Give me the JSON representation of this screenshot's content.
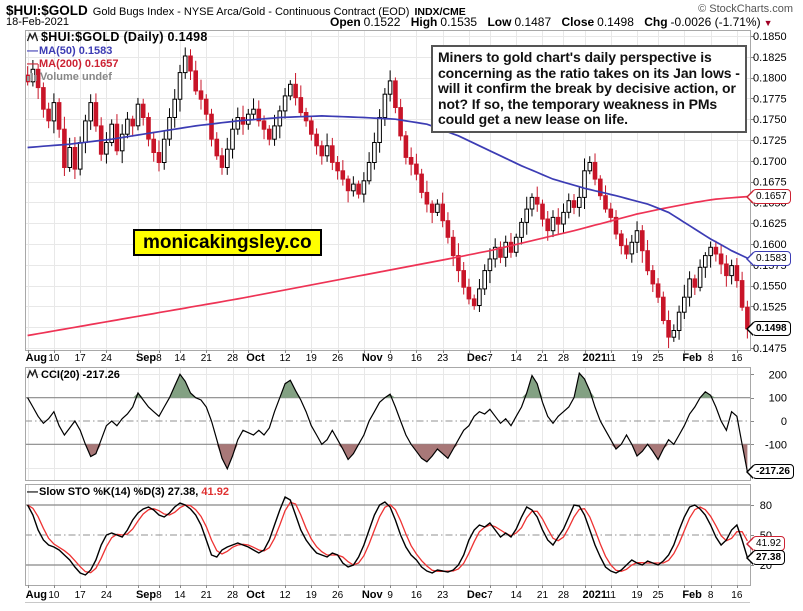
{
  "header": {
    "symbol": "$HUI:$GOLD",
    "description": "Gold Bugs Index - NYSE Arca/Gold - Continuous Contract (EOD)",
    "exchange": "INDX/CME",
    "copyright": "© StockCharts.com",
    "date": "18-Feb-2021",
    "quote": {
      "open_label": "Open",
      "open": "0.1522",
      "high_label": "High",
      "high": "0.1535",
      "low_label": "Low",
      "low": "0.1487",
      "close_label": "Close",
      "close": "0.1498",
      "chg_label": "Chg",
      "chg": "-0.0026 (-1.71%)",
      "down_arrow": "▼"
    }
  },
  "legend": {
    "dash": "—",
    "title": "$HUI:$GOLD (Daily) 0.1498",
    "ma50": "MA(50) 0.1583",
    "ma200": "MA(200) 0.1657",
    "volume": "Volume undef",
    "cci": "CCI(20) -217.26",
    "sto_black": "Slow STO %K(14) %D(3) 27.38,",
    "sto_red": "41.92"
  },
  "annotation": "Miners to gold chart's daily perspective is concerning as the ratio takes on its Jan lows - will it confirm the break by decisive action, or not? If so, the temporary weakness in PMs could get a new lease on life.",
  "watermark": "monicakingsley.co",
  "callouts": {
    "ma200": "0.1657",
    "ma50": "0.1583",
    "last": "0.1498",
    "cci": "-217.26",
    "sto_d": "41.92",
    "sto_k": "27.38"
  },
  "colors": {
    "candle_red": "#c81528",
    "candle_up_fill": "#ffffff",
    "candle_up_stroke": "#000000",
    "ma50": "#3c3cb4",
    "ma200": "#ee3355",
    "cci_line": "#000000",
    "cci_green_fill": "#83a183",
    "cci_red_fill": "#a87878",
    "sto_k": "#000000",
    "sto_d": "#ee3333",
    "grid": "#e8e8e8",
    "panel_border": "#a8a8a8",
    "threshold": "#888888",
    "watermark_bg": "#ffff00",
    "annotation_border": "#555555"
  },
  "chart_data": [
    {
      "type": "candlestick",
      "title": "$HUI:$GOLD (Daily)",
      "ylim": [
        0.1475,
        0.1851
      ],
      "yticks": [
        "0.1850",
        "0.1825",
        "0.1800",
        "0.1775",
        "0.1750",
        "0.1725",
        "0.1700",
        "0.1675",
        "0.1650",
        "0.1625",
        "0.1600",
        "0.1575",
        "0.1550",
        "0.1525",
        "0.1500",
        "0.1475"
      ],
      "xticklabels": [
        {
          "i": 0,
          "t": "Aug",
          "b": 1
        },
        {
          "i": 5,
          "t": "10"
        },
        {
          "i": 10,
          "t": "17"
        },
        {
          "i": 15,
          "t": "24"
        },
        {
          "i": 21,
          "t": "Sep",
          "b": 1
        },
        {
          "i": 25,
          "t": "8"
        },
        {
          "i": 29,
          "t": "14"
        },
        {
          "i": 34,
          "t": "21"
        },
        {
          "i": 39,
          "t": "28"
        },
        {
          "i": 42,
          "t": "Oct",
          "b": 1
        },
        {
          "i": 49,
          "t": "12"
        },
        {
          "i": 54,
          "t": "19"
        },
        {
          "i": 59,
          "t": "26"
        },
        {
          "i": 64,
          "t": "Nov",
          "b": 1
        },
        {
          "i": 69,
          "t": "9"
        },
        {
          "i": 74,
          "t": "16"
        },
        {
          "i": 79,
          "t": "23"
        },
        {
          "i": 84,
          "t": "Dec",
          "b": 1
        },
        {
          "i": 88,
          "t": "7"
        },
        {
          "i": 93,
          "t": "14"
        },
        {
          "i": 98,
          "t": "21"
        },
        {
          "i": 102,
          "t": "28"
        },
        {
          "i": 106,
          "t": "2021",
          "b": 1
        },
        {
          "i": 111,
          "t": "11"
        },
        {
          "i": 116,
          "t": "19"
        },
        {
          "i": 120,
          "t": "25"
        },
        {
          "i": 125,
          "t": "Feb",
          "b": 1
        },
        {
          "i": 130,
          "t": "8"
        },
        {
          "i": 135,
          "t": "16"
        }
      ],
      "close": [
        0.1795,
        0.181,
        0.1788,
        0.1762,
        0.1748,
        0.177,
        0.1738,
        0.1692,
        0.1716,
        0.169,
        0.1722,
        0.1748,
        0.177,
        0.1742,
        0.1708,
        0.1722,
        0.1744,
        0.1712,
        0.1732,
        0.175,
        0.1742,
        0.1768,
        0.1752,
        0.1726,
        0.171,
        0.1698,
        0.1726,
        0.1752,
        0.1774,
        0.1806,
        0.1826,
        0.1808,
        0.1784,
        0.1774,
        0.1756,
        0.1726,
        0.1706,
        0.1692,
        0.1714,
        0.1738,
        0.1752,
        0.1744,
        0.1756,
        0.1762,
        0.1748,
        0.1738,
        0.1726,
        0.1742,
        0.176,
        0.1778,
        0.1792,
        0.1776,
        0.1758,
        0.1748,
        0.1732,
        0.1718,
        0.1706,
        0.1718,
        0.1698,
        0.1688,
        0.1678,
        0.1664,
        0.1672,
        0.166,
        0.1676,
        0.1698,
        0.1722,
        0.1752,
        0.178,
        0.1796,
        0.1764,
        0.173,
        0.1704,
        0.1696,
        0.1684,
        0.1662,
        0.1648,
        0.1638,
        0.1648,
        0.1628,
        0.1608,
        0.1586,
        0.1568,
        0.1548,
        0.1534,
        0.1526,
        0.1546,
        0.1568,
        0.1582,
        0.1596,
        0.1584,
        0.1602,
        0.159,
        0.1608,
        0.1626,
        0.1642,
        0.1656,
        0.1648,
        0.163,
        0.1616,
        0.1632,
        0.1624,
        0.1638,
        0.1652,
        0.1644,
        0.1656,
        0.1688,
        0.1698,
        0.1678,
        0.1658,
        0.1642,
        0.1632,
        0.1612,
        0.1598,
        0.1588,
        0.1602,
        0.1616,
        0.1592,
        0.1568,
        0.1552,
        0.1536,
        0.1508,
        0.1488,
        0.1496,
        0.1518,
        0.1536,
        0.1558,
        0.1548,
        0.1572,
        0.1586,
        0.1596,
        0.1588,
        0.1576,
        0.1562,
        0.1574,
        0.1556,
        0.1524,
        0.1498
      ],
      "last_close": 0.1498,
      "ma50": {
        "name": "MA(50)",
        "value": 0.1583,
        "keypoints": [
          [
            0,
            0.1716
          ],
          [
            8,
            0.172
          ],
          [
            16,
            0.1726
          ],
          [
            24,
            0.1734
          ],
          [
            32,
            0.1742
          ],
          [
            40,
            0.1748
          ],
          [
            48,
            0.1752
          ],
          [
            56,
            0.1754
          ],
          [
            64,
            0.1752
          ],
          [
            70,
            0.175
          ],
          [
            76,
            0.1744
          ],
          [
            82,
            0.173
          ],
          [
            88,
            0.1712
          ],
          [
            94,
            0.1694
          ],
          [
            100,
            0.1678
          ],
          [
            106,
            0.1667
          ],
          [
            112,
            0.1658
          ],
          [
            118,
            0.1648
          ],
          [
            122,
            0.1638
          ],
          [
            126,
            0.1622
          ],
          [
            130,
            0.1606
          ],
          [
            134,
            0.1592
          ],
          [
            137,
            0.1583
          ]
        ]
      },
      "ma200": {
        "name": "MA(200)",
        "value": 0.1657,
        "keypoints": [
          [
            0,
            0.149
          ],
          [
            10,
            0.1501
          ],
          [
            20,
            0.1512
          ],
          [
            30,
            0.1523
          ],
          [
            40,
            0.1534
          ],
          [
            50,
            0.1546
          ],
          [
            60,
            0.1558
          ],
          [
            70,
            0.157
          ],
          [
            80,
            0.1582
          ],
          [
            88,
            0.1592
          ],
          [
            96,
            0.1604
          ],
          [
            104,
            0.1616
          ],
          [
            110,
            0.1626
          ],
          [
            116,
            0.1636
          ],
          [
            122,
            0.1644
          ],
          [
            127,
            0.165
          ],
          [
            131,
            0.1654
          ],
          [
            137,
            0.1657
          ]
        ]
      }
    },
    {
      "type": "line",
      "name": "CCI(20)",
      "ylim": [
        -256,
        228
      ],
      "yticks": [
        {
          "v": 200,
          "t": "200"
        },
        {
          "v": 100,
          "t": "100"
        },
        {
          "v": 0,
          "t": "0"
        },
        {
          "v": -100,
          "t": "-100"
        }
      ],
      "thresholds": {
        "upper": 100,
        "lower": -100,
        "mid": 0
      },
      "last": -217.26,
      "values": [
        100,
        60,
        20,
        -10,
        10,
        40,
        -20,
        -60,
        -30,
        0,
        -40,
        -100,
        -152,
        -140,
        -80,
        -20,
        0,
        -20,
        10,
        30,
        60,
        120,
        90,
        60,
        40,
        20,
        60,
        100,
        150,
        200,
        170,
        120,
        100,
        90,
        60,
        0,
        -80,
        -160,
        -205,
        -150,
        -80,
        -40,
        -50,
        -60,
        -40,
        -60,
        -30,
        40,
        100,
        160,
        175,
        130,
        90,
        40,
        -20,
        -60,
        -100,
        -80,
        -40,
        -80,
        -120,
        -165,
        -140,
        -100,
        -60,
        0,
        40,
        80,
        100,
        115,
        60,
        0,
        -60,
        -100,
        -130,
        -160,
        -175,
        -150,
        -120,
        -140,
        -160,
        -120,
        -80,
        -40,
        -20,
        20,
        40,
        30,
        50,
        20,
        -10,
        10,
        -20,
        20,
        60,
        120,
        195,
        160,
        80,
        20,
        -10,
        20,
        40,
        60,
        100,
        205,
        180,
        130,
        60,
        0,
        -40,
        -80,
        -120,
        -100,
        -60,
        -100,
        -150,
        -130,
        -100,
        -130,
        -165,
        -120,
        -80,
        -100,
        -60,
        -20,
        30,
        60,
        100,
        125,
        110,
        60,
        0,
        -40,
        40,
        20,
        -100,
        -217.26
      ]
    },
    {
      "type": "line",
      "name": "Slow STO %K(14) %D(3)",
      "ylim": [
        0,
        102
      ],
      "yticks": [
        {
          "v": 80,
          "t": "80"
        },
        {
          "v": 50,
          "t": "50"
        },
        {
          "v": 20,
          "t": "20"
        }
      ],
      "thresholds": {
        "upper": 80,
        "lower": 20,
        "mid": 50
      },
      "last_k": 27.38,
      "last_d": 41.92,
      "k": [
        80,
        70,
        55,
        45,
        40,
        38,
        35,
        30,
        25,
        18,
        12,
        10,
        15,
        25,
        40,
        50,
        52,
        50,
        48,
        55,
        65,
        72,
        76,
        78,
        75,
        70,
        68,
        72,
        78,
        82,
        80,
        76,
        70,
        60,
        45,
        30,
        28,
        35,
        38,
        40,
        42,
        40,
        38,
        35,
        32,
        35,
        45,
        60,
        75,
        88,
        85,
        70,
        55,
        45,
        38,
        32,
        30,
        28,
        32,
        30,
        22,
        18,
        20,
        28,
        40,
        55,
        70,
        80,
        83,
        78,
        65,
        50,
        38,
        30,
        25,
        18,
        14,
        12,
        15,
        14,
        13,
        15,
        20,
        30,
        45,
        55,
        60,
        58,
        62,
        55,
        48,
        52,
        48,
        56,
        68,
        78,
        75,
        68,
        55,
        45,
        40,
        48,
        56,
        68,
        80,
        79,
        70,
        55,
        40,
        28,
        18,
        14,
        12,
        15,
        20,
        25,
        22,
        20,
        24,
        22,
        20,
        24,
        30,
        40,
        55,
        68,
        78,
        80,
        76,
        70,
        60,
        48,
        40,
        45,
        55,
        60,
        45,
        27.38
      ]
    }
  ]
}
